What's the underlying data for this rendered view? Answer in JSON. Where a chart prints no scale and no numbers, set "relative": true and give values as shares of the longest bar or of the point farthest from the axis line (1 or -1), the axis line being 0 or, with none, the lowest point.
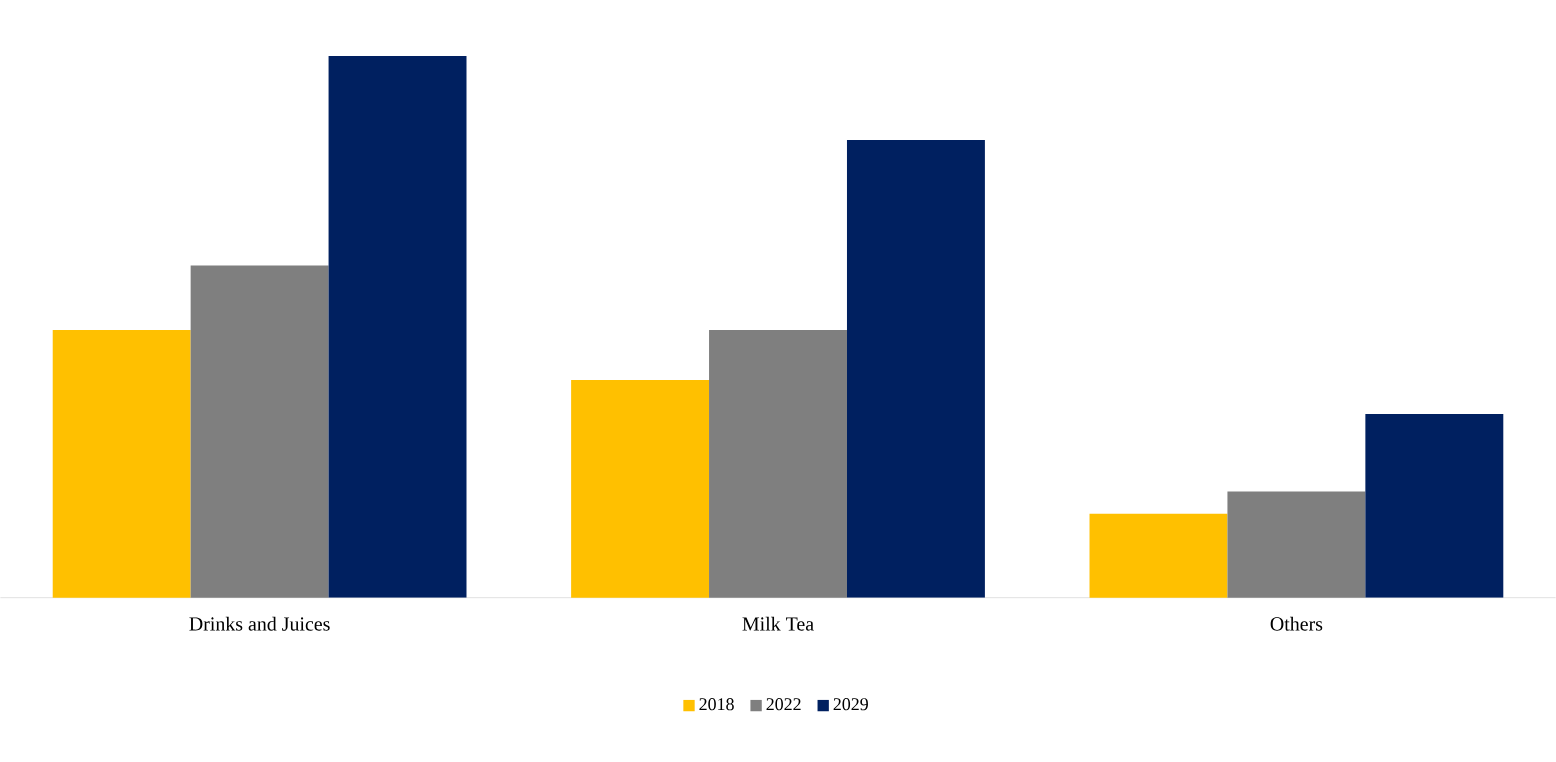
{
  "chart_data": {
    "type": "bar",
    "relative": true,
    "categories": [
      "Drinks and Juices",
      "Milk Tea",
      "Others"
    ],
    "series": [
      {
        "name": "2018",
        "color": "#ffc000",
        "values": [
          0.494,
          0.402,
          0.155
        ]
      },
      {
        "name": "2022",
        "color": "#7f7f7f",
        "values": [
          0.613,
          0.494,
          0.196
        ]
      },
      {
        "name": "2029",
        "color": "#002060",
        "values": [
          1,
          0.845,
          0.339
        ]
      }
    ],
    "legend": "bottom"
  }
}
